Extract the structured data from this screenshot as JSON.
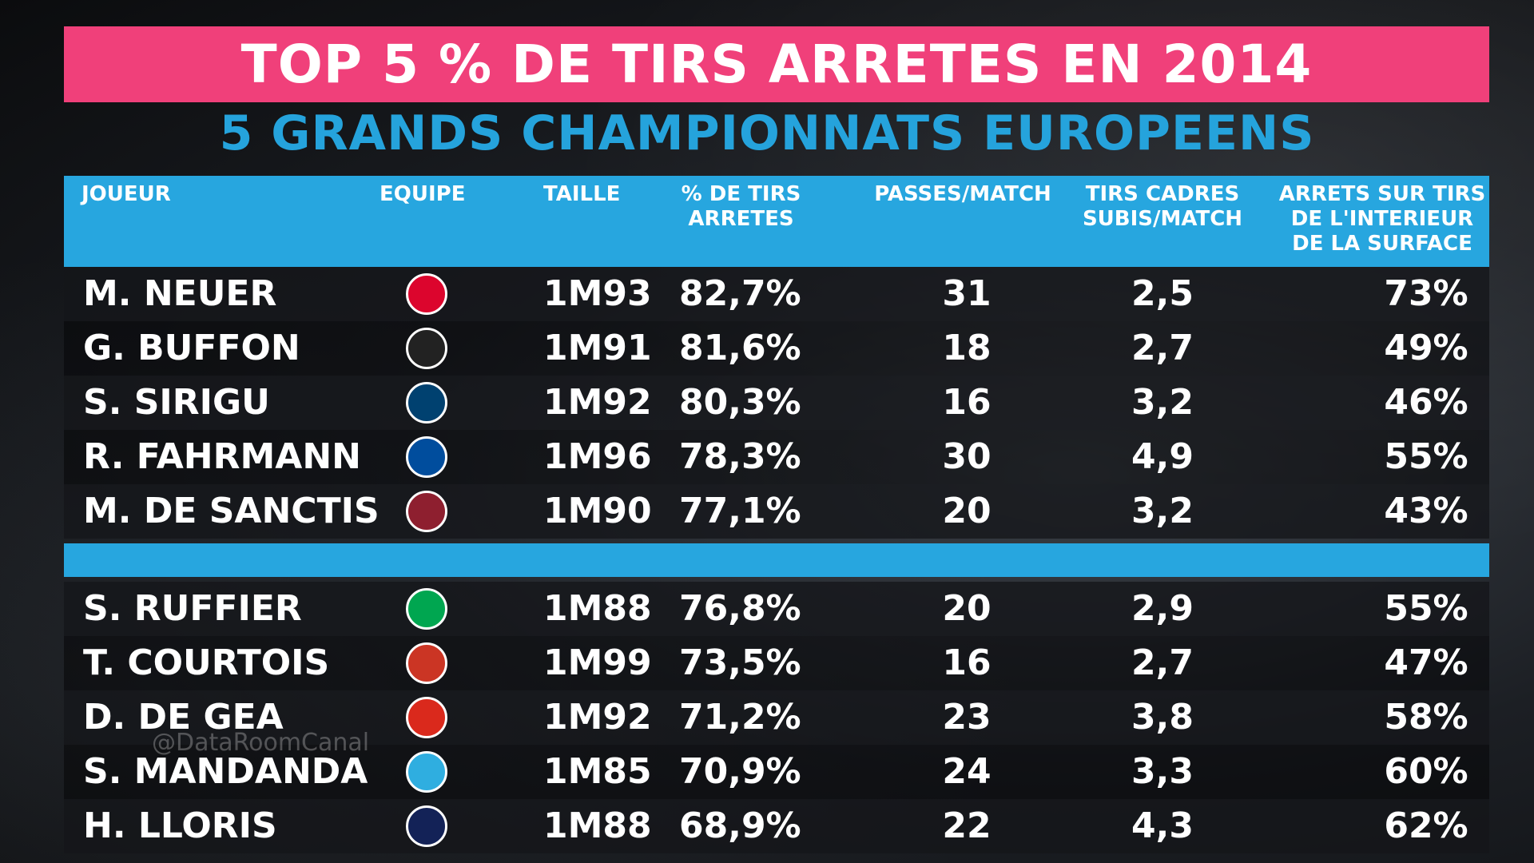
{
  "title": "TOP 5 % DE TIRS ARRETES EN 2014",
  "subtitle": "5 GRANDS CHAMPIONNATS EUROPEENS",
  "headers": {
    "player": "JOUEUR",
    "team": "EQUIPE",
    "height": "TAILLE",
    "pct": "% DE TIRS\nARRETES",
    "passes": "PASSES/MATCH",
    "shots": "TIRS CADRES\nSUBIS/MATCH",
    "saves": "ARRETS SUR TIRS\nDE L'INTERIEUR\nDE LA SURFACE"
  },
  "top_rows": [
    {
      "player": "M. NEUER",
      "team_icon": "bayern-munich-crest-icon",
      "team_color": "#dc052d",
      "height": "1M93",
      "pct": "82,7%",
      "passes": "31",
      "shots": "2,5",
      "saves": "73%"
    },
    {
      "player": "G. BUFFON",
      "team_icon": "juventus-crest-icon",
      "team_color": "#222222",
      "height": "1M91",
      "pct": "81,6%",
      "passes": "18",
      "shots": "2,7",
      "saves": "49%"
    },
    {
      "player": "S. SIRIGU",
      "team_icon": "psg-crest-icon",
      "team_color": "#004170",
      "height": "1M92",
      "pct": "80,3%",
      "passes": "16",
      "shots": "3,2",
      "saves": "46%"
    },
    {
      "player": "R. FAHRMANN",
      "team_icon": "schalke-crest-icon",
      "team_color": "#004d9d",
      "height": "1M96",
      "pct": "78,3%",
      "passes": "30",
      "shots": "4,9",
      "saves": "55%"
    },
    {
      "player": "M. DE SANCTIS",
      "team_icon": "as-roma-crest-icon",
      "team_color": "#8e1f2f",
      "height": "1M90",
      "pct": "77,1%",
      "passes": "20",
      "shots": "3,2",
      "saves": "43%"
    }
  ],
  "bottom_rows": [
    {
      "player": "S. RUFFIER",
      "team_icon": "saint-etienne-crest-icon",
      "team_color": "#00a650",
      "height": "1M88",
      "pct": "76,8%",
      "passes": "20",
      "shots": "2,9",
      "saves": "55%"
    },
    {
      "player": "T. COURTOIS",
      "team_icon": "atletico-madrid-crest-icon",
      "team_color": "#cb3524",
      "height": "1M99",
      "pct": "73,5%",
      "passes": "16",
      "shots": "2,7",
      "saves": "47%"
    },
    {
      "player": "D. DE GEA",
      "team_icon": "manchester-united-crest-icon",
      "team_color": "#da291c",
      "height": "1M92",
      "pct": "71,2%",
      "passes": "23",
      "shots": "3,8",
      "saves": "58%"
    },
    {
      "player": "S. MANDANDA",
      "team_icon": "olympique-marseille-crest-icon",
      "team_color": "#2faee0",
      "height": "1M85",
      "pct": "70,9%",
      "passes": "24",
      "shots": "3,3",
      "saves": "60%"
    },
    {
      "player": "H. LLORIS",
      "team_icon": "tottenham-crest-icon",
      "team_color": "#132257",
      "height": "1M88",
      "pct": "68,9%",
      "passes": "22",
      "shots": "4,3",
      "saves": "62%"
    }
  ],
  "watermark": "@DataRoomCanal"
}
